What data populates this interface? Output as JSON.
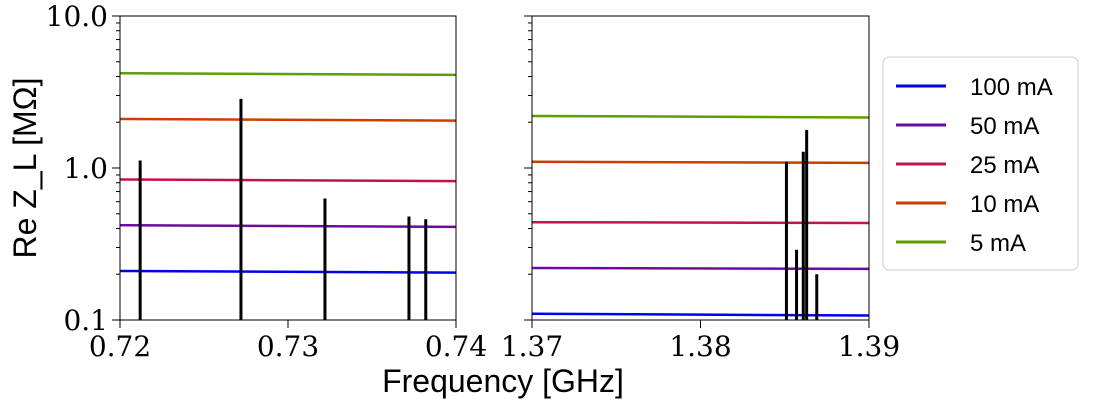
{
  "chart_data": {
    "type": "line",
    "xlabel": "Frequency [GHz]",
    "ylabel": "Re Z_L [MΩ]",
    "yscale": "log",
    "ylim": [
      0.1,
      10.0
    ],
    "yticks": [
      "0.1",
      "1.0",
      "10.0"
    ],
    "grid": false,
    "legend_placement": "right",
    "series": [
      {
        "name": "100 mA",
        "color": "#0000ee"
      },
      {
        "name": "50 mA",
        "color": "#6a0d9e"
      },
      {
        "name": "25 mA",
        "color": "#c0144a"
      },
      {
        "name": "10 mA",
        "color": "#cc3d00"
      },
      {
        "name": "5 mA",
        "color": "#5f9e00"
      }
    ],
    "panels": [
      {
        "xlim": [
          0.72,
          0.74
        ],
        "xticks": [
          "0.72",
          "0.73",
          "0.74"
        ],
        "thresholds": [
          {
            "series": "100 mA",
            "y": [
              0.21,
              0.205
            ]
          },
          {
            "series": "50 mA",
            "y": [
              0.42,
              0.41
            ]
          },
          {
            "series": "25 mA",
            "y": [
              0.84,
              0.82
            ]
          },
          {
            "series": "10 mA",
            "y": [
              2.1,
              2.05
            ]
          },
          {
            "series": "5 mA",
            "y": [
              4.2,
              4.1
            ]
          }
        ],
        "impedance_peaks": [
          {
            "x": 0.7212,
            "y": 1.12
          },
          {
            "x": 0.7272,
            "y": 2.85
          },
          {
            "x": 0.7322,
            "y": 0.63
          },
          {
            "x": 0.7372,
            "y": 0.48
          },
          {
            "x": 0.7382,
            "y": 0.46
          }
        ]
      },
      {
        "xlim": [
          1.37,
          1.39
        ],
        "xticks": [
          "1.37",
          "1.38",
          "1.39"
        ],
        "thresholds": [
          {
            "series": "100 mA",
            "y": [
              0.11,
              0.107
            ]
          },
          {
            "series": "50 mA",
            "y": [
              0.22,
              0.217
            ]
          },
          {
            "series": "25 mA",
            "y": [
              0.44,
              0.435
            ]
          },
          {
            "series": "10 mA",
            "y": [
              1.1,
              1.08
            ]
          },
          {
            "series": "5 mA",
            "y": [
              2.2,
              2.15
            ]
          }
        ],
        "impedance_peaks": [
          {
            "x": 1.3851,
            "y": 1.1
          },
          {
            "x": 1.3857,
            "y": 0.29
          },
          {
            "x": 1.3861,
            "y": 1.28
          },
          {
            "x": 1.3863,
            "y": 1.78
          },
          {
            "x": 1.3869,
            "y": 0.2
          }
        ]
      }
    ]
  }
}
